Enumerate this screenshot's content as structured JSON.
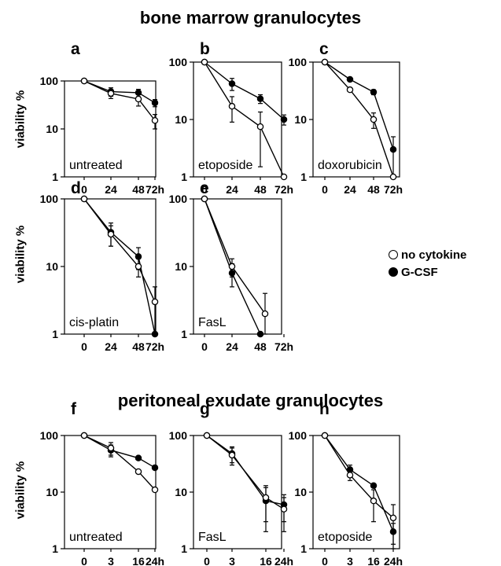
{
  "section_titles": {
    "top": "bone marrow granulocytes",
    "bottom": "peritoneal exudate granulocytes"
  },
  "y_axis_label": "viability %",
  "legend": {
    "items": [
      {
        "label": "no cytokine",
        "marker": "open-circle"
      },
      {
        "label": "G-CSF",
        "marker": "filled-circle"
      }
    ]
  },
  "chart_data": [
    {
      "panel": "a",
      "type": "line",
      "annotation": "untreated",
      "x_categories": [
        "0",
        "24",
        "48",
        "72h"
      ],
      "y_scale": "log",
      "ylim": [
        1,
        100
      ],
      "yticks": [
        "1",
        "10",
        "100"
      ],
      "series": [
        {
          "name": "no cytokine",
          "values": [
            100,
            55,
            42,
            15
          ],
          "errors": [
            0,
            12,
            12,
            5
          ]
        },
        {
          "name": "G-CSF",
          "values": [
            100,
            60,
            57,
            35
          ],
          "errors": [
            0,
            12,
            10,
            6
          ]
        }
      ]
    },
    {
      "panel": "b",
      "type": "line",
      "annotation": "etoposide",
      "x_categories": [
        "0",
        "24",
        "48",
        "72h"
      ],
      "y_scale": "log",
      "ylim": [
        1,
        100
      ],
      "yticks": [
        "1",
        "10",
        "100"
      ],
      "series": [
        {
          "name": "no cytokine",
          "values": [
            100,
            17,
            7.5,
            1
          ],
          "errors": [
            0,
            8,
            6,
            0
          ]
        },
        {
          "name": "G-CSF",
          "values": [
            100,
            42,
            23,
            10
          ],
          "errors": [
            0,
            10,
            4,
            2
          ]
        }
      ]
    },
    {
      "panel": "c",
      "type": "line",
      "annotation": "doxorubicin",
      "x_categories": [
        "0",
        "24",
        "48",
        "72h"
      ],
      "y_scale": "log",
      "ylim": [
        1,
        100
      ],
      "yticks": [
        "1",
        "10",
        "100"
      ],
      "series": [
        {
          "name": "no cytokine",
          "values": [
            100,
            33,
            10,
            1
          ],
          "errors": [
            0,
            2,
            3,
            0
          ]
        },
        {
          "name": "G-CSF",
          "values": [
            100,
            50,
            30,
            3
          ],
          "errors": [
            0,
            3,
            3,
            2
          ]
        }
      ]
    },
    {
      "panel": "d",
      "type": "line",
      "annotation": "cis-platin",
      "x_categories": [
        "0",
        "24",
        "48",
        "72h"
      ],
      "y_scale": "log",
      "ylim": [
        1,
        100
      ],
      "yticks": [
        "1",
        "10",
        "100"
      ],
      "series": [
        {
          "name": "no cytokine",
          "values": [
            100,
            30,
            10,
            3
          ],
          "errors": [
            0,
            10,
            3,
            2
          ]
        },
        {
          "name": "G-CSF",
          "values": [
            100,
            32,
            14,
            1
          ],
          "errors": [
            0,
            12,
            5,
            0
          ]
        }
      ]
    },
    {
      "panel": "e",
      "type": "line",
      "annotation": "FasL",
      "x_categories": [
        "0",
        "24",
        "48",
        "72h"
      ],
      "y_scale": "log",
      "ylim": [
        1,
        100
      ],
      "yticks": [
        "1",
        "10",
        "100"
      ],
      "series": [
        {
          "name": "no cytokine",
          "x_index": [
            0,
            1,
            2.2
          ],
          "values": [
            100,
            10,
            2
          ],
          "errors": [
            0,
            3,
            2
          ]
        },
        {
          "name": "G-CSF",
          "x_index": [
            0,
            1,
            2
          ],
          "values": [
            100,
            8,
            1
          ],
          "errors": [
            0,
            3,
            0
          ]
        }
      ]
    },
    {
      "panel": "f",
      "type": "line",
      "annotation": "untreated",
      "x_categories": [
        "0",
        "3",
        "16",
        "24h"
      ],
      "y_scale": "log",
      "ylim": [
        1,
        100
      ],
      "yticks": [
        "1",
        "10",
        "100"
      ],
      "series": [
        {
          "name": "no cytokine",
          "values": [
            100,
            60,
            23,
            11
          ],
          "errors": [
            0,
            15,
            0,
            0
          ]
        },
        {
          "name": "G-CSF",
          "values": [
            100,
            55,
            40,
            27
          ],
          "errors": [
            0,
            13,
            0,
            0
          ]
        }
      ]
    },
    {
      "panel": "g",
      "type": "line",
      "annotation": "FasL",
      "x_categories": [
        "0",
        "3",
        "16",
        "24h"
      ],
      "y_scale": "log",
      "ylim": [
        1,
        100
      ],
      "yticks": [
        "1",
        "10",
        "100"
      ],
      "series": [
        {
          "name": "no cytokine",
          "values": [
            100,
            45,
            8,
            5
          ],
          "errors": [
            0,
            15,
            5,
            3
          ]
        },
        {
          "name": "G-CSF",
          "values": [
            100,
            48,
            7,
            6
          ],
          "errors": [
            0,
            15,
            5,
            3
          ]
        }
      ]
    },
    {
      "panel": "h",
      "type": "line",
      "annotation": "etoposide",
      "x_categories": [
        "0",
        "3",
        "16",
        "24h"
      ],
      "y_scale": "log",
      "ylim": [
        1,
        100
      ],
      "yticks": [
        "1",
        "10",
        "100"
      ],
      "series": [
        {
          "name": "no cytokine",
          "values": [
            100,
            20,
            7,
            3.5
          ],
          "errors": [
            0,
            4,
            4,
            2.5
          ]
        },
        {
          "name": "G-CSF",
          "values": [
            100,
            25,
            13,
            2
          ],
          "errors": [
            0,
            5,
            0,
            0.8
          ]
        }
      ]
    }
  ]
}
